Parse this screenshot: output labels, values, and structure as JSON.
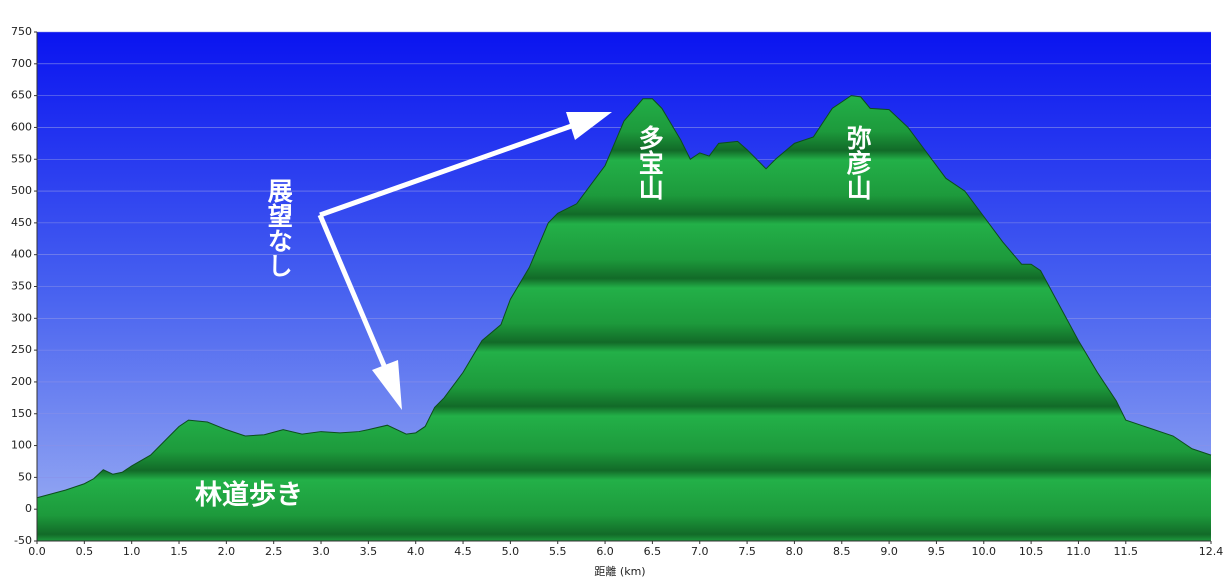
{
  "chart_data": {
    "type": "area",
    "x_label": "距離 (km)",
    "annotations": [
      "展望なし",
      "多宝山",
      "弥彦山",
      "林道歩き"
    ],
    "color": "#1f9e3e",
    "x": [
      0,
      0.3,
      0.5,
      0.6,
      0.7,
      0.8,
      0.9,
      1.0,
      1.2,
      1.4,
      1.5,
      1.6,
      1.8,
      2.0,
      2.2,
      2.4,
      2.6,
      2.8,
      3.0,
      3.2,
      3.4,
      3.5,
      3.7,
      3.9,
      4.0,
      4.1,
      4.2,
      4.3,
      4.5,
      4.7,
      4.9,
      5.0,
      5.2,
      5.4,
      5.5,
      5.7,
      5.9,
      6.0,
      6.2,
      6.4,
      6.5,
      6.6,
      6.8,
      6.9,
      7.0,
      7.1,
      7.2,
      7.4,
      7.5,
      7.7,
      7.8,
      8.0,
      8.2,
      8.4,
      8.6,
      8.7,
      8.8,
      9.0,
      9.2,
      9.4,
      9.6,
      9.8,
      10.0,
      10.2,
      10.4,
      10.5,
      10.6,
      10.8,
      11.0,
      11.2,
      11.4,
      11.5,
      11.7,
      12.0,
      12.2,
      12.4
    ],
    "values": [
      18,
      30,
      40,
      48,
      62,
      55,
      58,
      68,
      85,
      115,
      130,
      140,
      137,
      125,
      115,
      117,
      125,
      118,
      122,
      120,
      122,
      125,
      132,
      118,
      120,
      130,
      160,
      175,
      215,
      265,
      290,
      330,
      380,
      450,
      465,
      480,
      520,
      540,
      610,
      645,
      645,
      630,
      580,
      550,
      560,
      555,
      575,
      578,
      565,
      535,
      550,
      575,
      585,
      630,
      650,
      648,
      630,
      628,
      600,
      560,
      520,
      500,
      460,
      420,
      385,
      385,
      375,
      320,
      265,
      215,
      170,
      140,
      130,
      115,
      95,
      85
    ],
    "xlim": [
      0,
      12.4
    ],
    "ylim": [
      -50,
      750
    ],
    "xticks": [
      {
        "value": 0,
        "label": "0.0"
      },
      0.5,
      {
        "value": 1,
        "label": "1.0"
      },
      1.5,
      {
        "value": 2,
        "label": "2.0"
      },
      2.5,
      {
        "value": 3,
        "label": "3.0"
      },
      3.5,
      {
        "value": 4,
        "label": "4.0"
      },
      4.5,
      {
        "value": 5,
        "label": "5.0"
      },
      5.5,
      {
        "value": 6,
        "label": "6.0"
      },
      6.5,
      {
        "value": 7,
        "label": "7.0"
      },
      7.5,
      {
        "value": 8,
        "label": "8.0"
      },
      8.5,
      {
        "value": 9,
        "label": "9.0"
      },
      9.5,
      {
        "value": 10,
        "label": "10.0"
      },
      10.5,
      {
        "value": 11,
        "label": "11.0"
      },
      11.5,
      12.4
    ],
    "yticks": [
      -50,
      0,
      50,
      100,
      150,
      200,
      250,
      300,
      350,
      400,
      450,
      500,
      550,
      600,
      650,
      700,
      750
    ],
    "grid": true
  }
}
